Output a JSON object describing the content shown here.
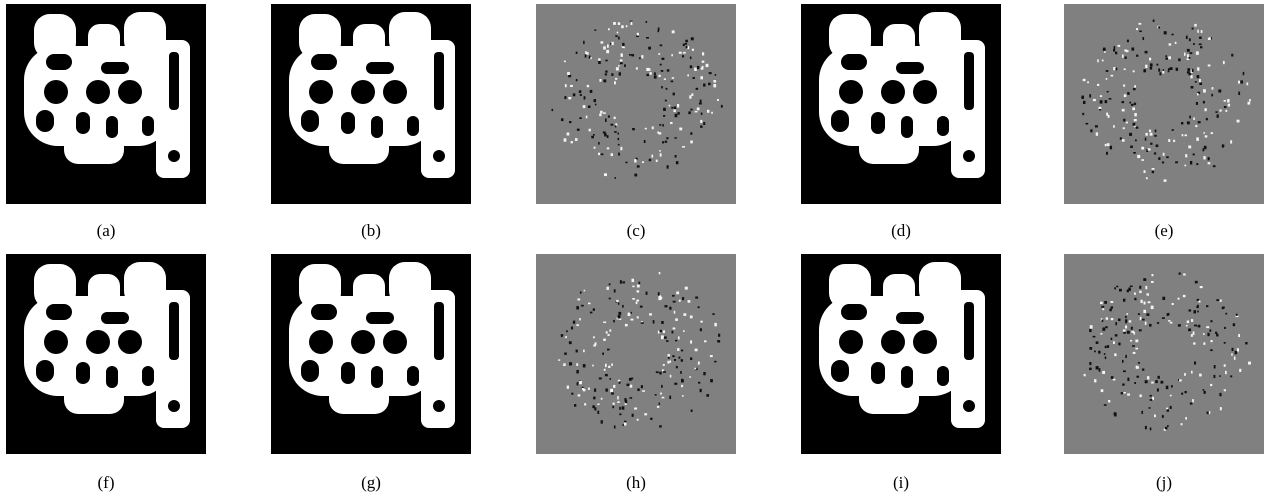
{
  "panels": [
    {
      "caption": "(a)"
    },
    {
      "caption": "(b)"
    },
    {
      "caption": "(c)"
    },
    {
      "caption": "(d)"
    },
    {
      "caption": "(e)"
    },
    {
      "caption": "(f)"
    },
    {
      "caption": "(g)"
    },
    {
      "caption": "(h)"
    },
    {
      "caption": "(i)"
    },
    {
      "caption": "(j)"
    }
  ]
}
